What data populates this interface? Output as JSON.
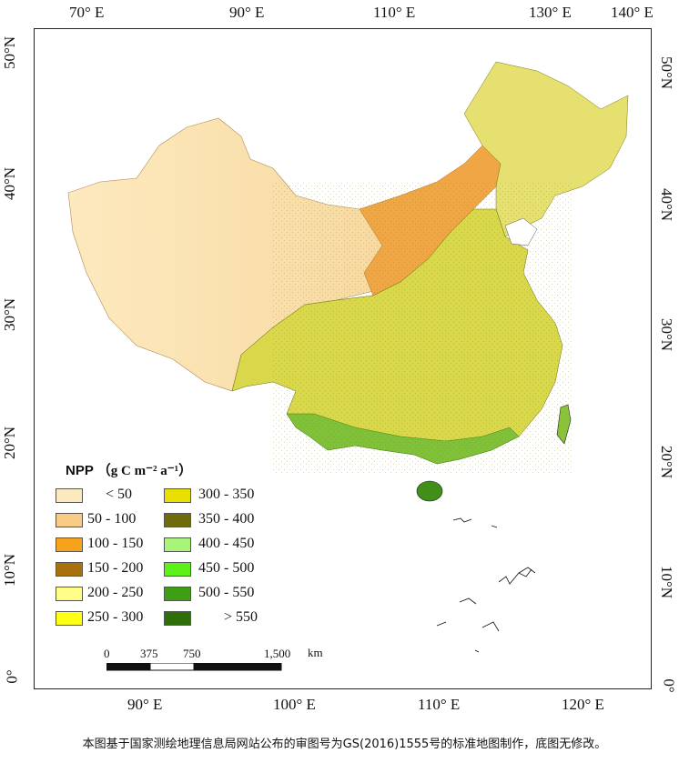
{
  "map": {
    "top_lon_ticks": [
      "70° E",
      "90° E",
      "110° E",
      "130° E",
      "140° E"
    ],
    "bottom_lon_ticks": [
      "90° E",
      "100° E",
      "110° E",
      "120° E"
    ],
    "left_lat_ticks": [
      "50°N",
      "40°N",
      "30°N",
      "20°N",
      "10°N",
      "0°"
    ],
    "right_lat_ticks": [
      "50°N",
      "40°N",
      "30°N",
      "20°N",
      "10°N",
      "0°"
    ]
  },
  "legend": {
    "title_main": "NPP",
    "title_unit": "（g C m⁻² a⁻¹）",
    "items": [
      {
        "label": "< 50",
        "color": "#fde9bf"
      },
      {
        "label": "50 - 100",
        "color": "#f9cc86"
      },
      {
        "label": "100 - 150",
        "color": "#f6a21c"
      },
      {
        "label": "150 - 200",
        "color": "#a8710c"
      },
      {
        "label": "200 - 250",
        "color": "#fffd86"
      },
      {
        "label": "250 - 300",
        "color": "#ffff16"
      },
      {
        "label": "300 - 350",
        "color": "#e8e000"
      },
      {
        "label": "350 - 400",
        "color": "#6f6a0b"
      },
      {
        "label": "400 - 450",
        "color": "#a8f57a"
      },
      {
        "label": "450 - 500",
        "color": "#5ef019"
      },
      {
        "label": "500 - 550",
        "color": "#3f9f14"
      },
      {
        "label": "> 550",
        "color": "#2f6f0a"
      }
    ]
  },
  "scale_bar": {
    "labels": [
      "0",
      "375",
      "750",
      "1,500"
    ],
    "unit": "km"
  },
  "footnote": "本图基于国家测绘地理信息局网站公布的审图号为GS(2016)1555号的标准地图制作，底图无修改。"
}
